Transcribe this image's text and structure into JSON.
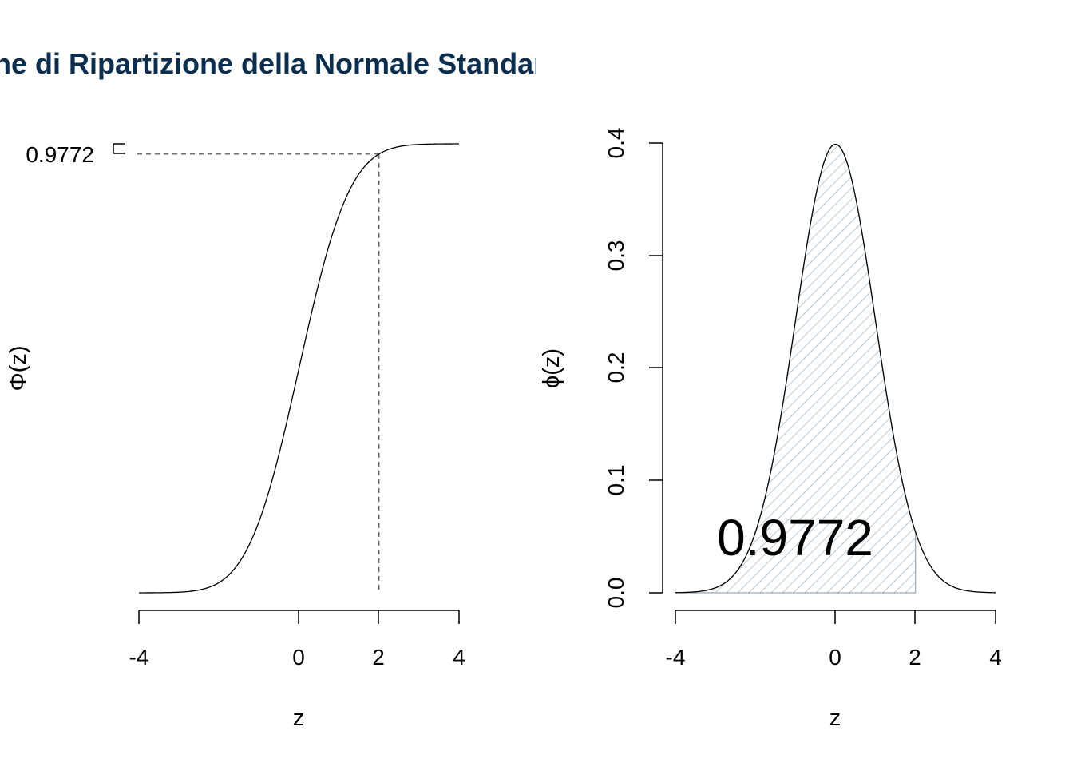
{
  "title": "Funzione di Ripartizione della Normale Standard",
  "chart_data": [
    {
      "type": "line",
      "function": "standard normal cumulative distribution function",
      "xlabel": "z",
      "ylabel": "Φ(z)",
      "xlim": [
        -4,
        4
      ],
      "ylim": [
        0,
        1
      ],
      "xticks": [
        "-4",
        "0",
        "2",
        "4"
      ],
      "yticks": [
        "1"
      ],
      "z_marker": 2,
      "value_marker": 0.9772,
      "value_label": "0.9772",
      "line_color": "#000000",
      "reference_line_style": "dashed",
      "reference_line_color": "#444444"
    },
    {
      "type": "area",
      "function": "standard normal probability density function",
      "xlabel": "z",
      "ylabel": "ϕ(z)",
      "xlim": [
        -4,
        4
      ],
      "ylim": [
        0,
        0.4
      ],
      "xticks": [
        "-4",
        "0",
        "2",
        "4"
      ],
      "yticks": [
        "0.0",
        "0.1",
        "0.2",
        "0.3",
        "0.4"
      ],
      "shade_from": -4,
      "shade_to": 2,
      "area_label": "0.9772",
      "fill_style": "hatched",
      "fill_color": "#b8c9d8",
      "line_color": "#000000",
      "shaded_outline_color": "#7f97ad"
    }
  ]
}
